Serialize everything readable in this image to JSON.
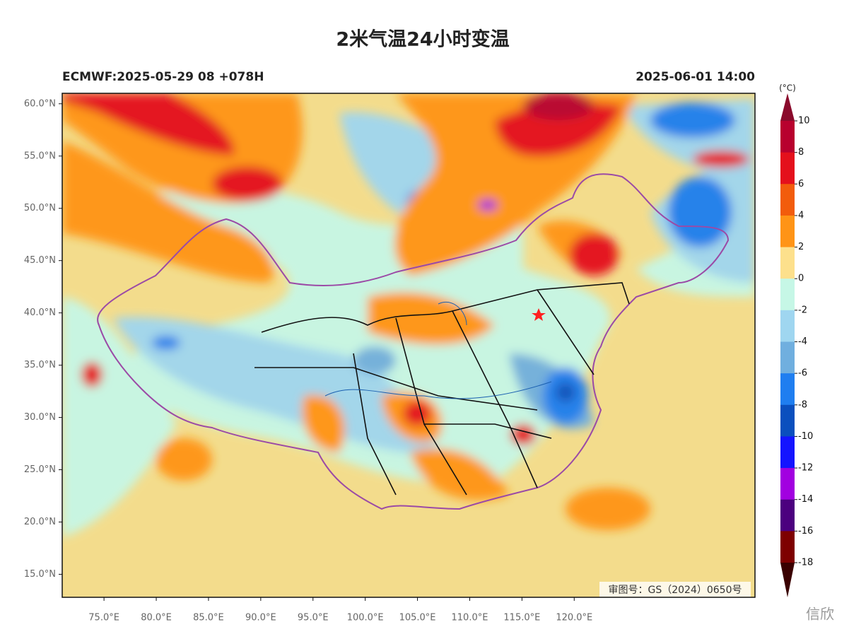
{
  "title": "2米气温24小时变温",
  "subtitle_left": "ECMWF:2025-05-29 08 +078H",
  "subtitle_right": "2025-06-01 14:00",
  "map_extent": {
    "lon": [
      71,
      137.3
    ],
    "lat": [
      12.8,
      61
    ]
  },
  "lat_ticks": [
    {
      "value": 60,
      "label": "60.0°N"
    },
    {
      "value": 55,
      "label": "55.0°N"
    },
    {
      "value": 50,
      "label": "50.0°N"
    },
    {
      "value": 45,
      "label": "45.0°N"
    },
    {
      "value": 40,
      "label": "40.0°N"
    },
    {
      "value": 35,
      "label": "35.0°N"
    },
    {
      "value": 30,
      "label": "30.0°N"
    },
    {
      "value": 25,
      "label": "25.0°N"
    },
    {
      "value": 20,
      "label": "20.0°N"
    },
    {
      "value": 15,
      "label": "15.0°N"
    }
  ],
  "lon_ticks": [
    {
      "value": 75,
      "label": "75.0°E"
    },
    {
      "value": 80,
      "label": "80.0°E"
    },
    {
      "value": 85,
      "label": "85.0°E"
    },
    {
      "value": 90,
      "label": "90.0°E"
    },
    {
      "value": 95,
      "label": "95.0°E"
    },
    {
      "value": 100,
      "label": "100.0°E"
    },
    {
      "value": 105,
      "label": "105.0°E"
    },
    {
      "value": 110,
      "label": "110.0°E"
    },
    {
      "value": 115,
      "label": "115.0°E"
    },
    {
      "value": 120,
      "label": "120.0°E"
    }
  ],
  "colorbar": {
    "unit": "(°C)",
    "ticks": [
      10,
      8,
      6,
      4,
      2,
      0,
      -2,
      -4,
      -6,
      -8,
      -10,
      -12,
      -14,
      -16,
      -18
    ],
    "colors": [
      "#8a0a2c",
      "#b8002e",
      "#e4101c",
      "#f25c0c",
      "#ff9416",
      "#fde08c",
      "#c6f7e6",
      "#9fd6f0",
      "#70afdf",
      "#1f7ef0",
      "#0a4fbe",
      "#1414ff",
      "#a200e0",
      "#4c007f",
      "#7e0000",
      "#3a0000"
    ]
  },
  "watermark": "审图号：GS（2024）0650号",
  "credit": "信欣"
}
